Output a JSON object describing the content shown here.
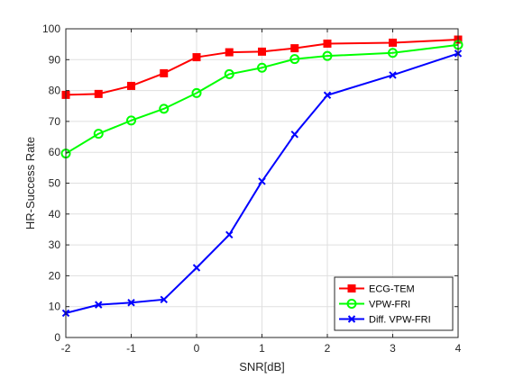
{
  "chart_data": {
    "type": "line",
    "xlabel": "SNR[dB]",
    "ylabel": "HR-Success Rate",
    "xlim": [
      -2,
      4
    ],
    "ylim": [
      0,
      100
    ],
    "xticks": [
      -2,
      -1,
      0,
      1,
      2,
      3,
      4
    ],
    "xtick_labels": [
      "-2",
      "-1",
      "0",
      "1",
      "2",
      "3",
      "4"
    ],
    "yticks": [
      0,
      10,
      20,
      30,
      40,
      50,
      60,
      70,
      80,
      90,
      100
    ],
    "ytick_labels": [
      "0",
      "10",
      "20",
      "30",
      "40",
      "50",
      "60",
      "70",
      "80",
      "90",
      "100"
    ],
    "grid": true,
    "legend_position": "bottom-right",
    "series": [
      {
        "name": "ECG-TEM",
        "color": "#ff0000",
        "marker": "square",
        "x": [
          -2,
          -1.5,
          -1,
          -0.5,
          0,
          0.5,
          1,
          1.5,
          2,
          3,
          4
        ],
        "y": [
          78.6,
          78.9,
          81.5,
          85.6,
          90.8,
          92.4,
          92.6,
          93.7,
          95.2,
          95.5,
          96.5
        ]
      },
      {
        "name": "VPW-FRI",
        "color": "#00ff00",
        "marker": "circle",
        "x": [
          -2,
          -1.5,
          -1,
          -0.5,
          0,
          0.5,
          1,
          1.5,
          2,
          3,
          4
        ],
        "y": [
          59.6,
          66.0,
          70.3,
          74.1,
          79.2,
          85.3,
          87.4,
          90.2,
          91.2,
          92.2,
          94.8
        ]
      },
      {
        "name": "Diff. VPW-FRI",
        "color": "#0000ff",
        "marker": "x",
        "x": [
          -2,
          -1.5,
          -1,
          -0.5,
          0,
          0.5,
          1,
          1.5,
          2,
          3,
          4
        ],
        "y": [
          7.9,
          10.6,
          11.3,
          12.3,
          22.6,
          33.3,
          50.6,
          65.8,
          78.5,
          85.0,
          92.0
        ]
      }
    ]
  }
}
